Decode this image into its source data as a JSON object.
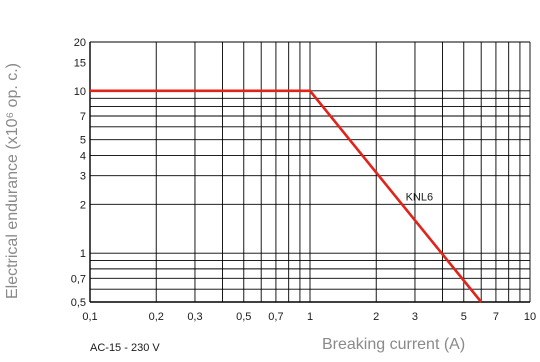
{
  "chart_data": {
    "type": "line",
    "xlabel": "Breaking current (A)",
    "ylabel": "Electrical endurance (x10⁶ op. c.)",
    "xscale": "log",
    "yscale": "log",
    "xlim": [
      0.1,
      10
    ],
    "ylim": [
      0.5,
      20
    ],
    "grid": true,
    "x_tick_labels": [
      {
        "value": 0.1,
        "label": "0,1"
      },
      {
        "value": 0.2,
        "label": "0,2"
      },
      {
        "value": 0.3,
        "label": "0,3"
      },
      {
        "value": 0.5,
        "label": "0,5"
      },
      {
        "value": 0.7,
        "label": "0,7"
      },
      {
        "value": 1,
        "label": "1"
      },
      {
        "value": 2,
        "label": "2"
      },
      {
        "value": 3,
        "label": "3"
      },
      {
        "value": 5,
        "label": "5"
      },
      {
        "value": 7,
        "label": "7"
      },
      {
        "value": 10,
        "label": "10"
      }
    ],
    "y_tick_labels": [
      {
        "value": 0.5,
        "label": "0,5"
      },
      {
        "value": 0.7,
        "label": "0,7"
      },
      {
        "value": 1,
        "label": "1"
      },
      {
        "value": 2,
        "label": "2"
      },
      {
        "value": 3,
        "label": "3"
      },
      {
        "value": 4,
        "label": "4"
      },
      {
        "value": 5,
        "label": "5"
      },
      {
        "value": 7,
        "label": "7"
      },
      {
        "value": 10,
        "label": "10"
      },
      {
        "value": 15,
        "label": "15"
      },
      {
        "value": 20,
        "label": "20"
      }
    ],
    "series": [
      {
        "name": "KNL6",
        "color": "#e2231a",
        "points": [
          {
            "x": 0.1,
            "y": 10
          },
          {
            "x": 1,
            "y": 10
          },
          {
            "x": 6,
            "y": 0.5
          }
        ]
      }
    ],
    "annotations": [
      {
        "text": "AC-15 - 230 V"
      }
    ]
  }
}
